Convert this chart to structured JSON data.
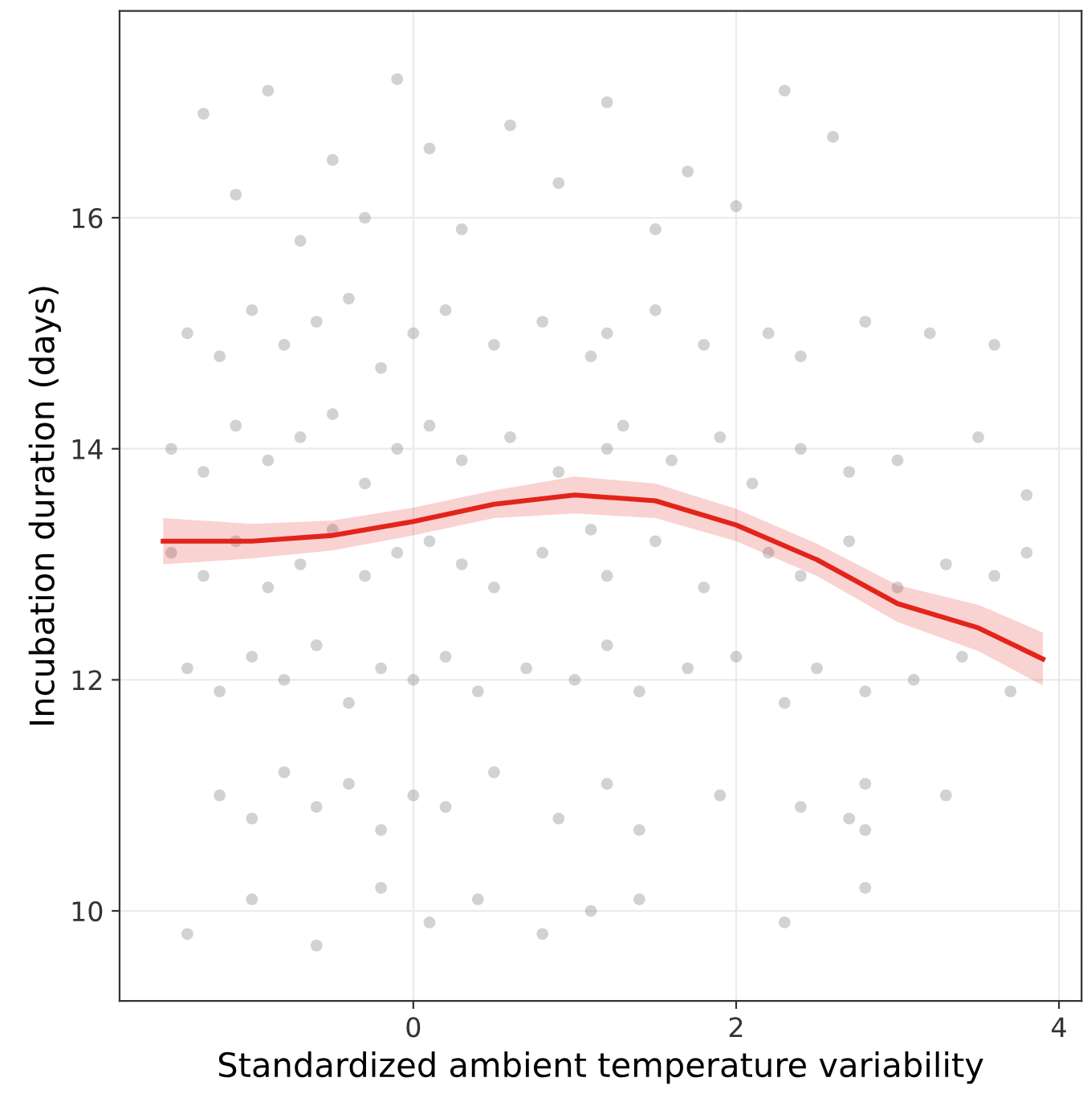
{
  "chart_data": {
    "type": "scatter",
    "xlabel": "Standardized ambient temperature variability",
    "ylabel": "Incubation duration (days)",
    "xlim": [
      -1.82,
      4.14
    ],
    "ylim": [
      9.22,
      17.79
    ],
    "xticks": [
      0,
      2,
      4
    ],
    "yticks": [
      10,
      12,
      14,
      16
    ],
    "grid": true,
    "marker": "circle",
    "series": [
      {
        "color": "#7f7f7f",
        "x": [
          -1.5,
          -1.3,
          -1.1,
          -0.9,
          -0.7,
          -0.5,
          -0.3,
          -0.1,
          0.1,
          0.3,
          0.5,
          0.8,
          1.1,
          1.2,
          1.5,
          1.8,
          2.2,
          2.4,
          2.7,
          3.0,
          3.3,
          3.6,
          3.8,
          -1.4,
          -1.2,
          -1.0,
          -0.8,
          -0.6,
          -0.4,
          -0.2,
          0.0,
          0.2,
          0.4,
          0.7,
          1.0,
          1.2,
          1.4,
          1.7,
          2.0,
          2.3,
          2.5,
          2.8,
          3.1,
          3.4,
          3.7,
          -1.5,
          -1.3,
          -1.1,
          -0.9,
          -0.7,
          -0.5,
          -0.3,
          -0.1,
          0.1,
          0.3,
          0.6,
          0.9,
          1.2,
          1.3,
          1.6,
          1.9,
          2.1,
          2.4,
          2.7,
          3.0,
          3.5,
          3.8,
          -1.4,
          -1.2,
          -1.0,
          -0.8,
          -0.6,
          -0.4,
          -0.2,
          0.0,
          0.2,
          0.5,
          0.8,
          1.1,
          1.2,
          1.5,
          1.8,
          2.2,
          2.4,
          2.8,
          3.2,
          3.6,
          -1.3,
          -1.1,
          -0.9,
          -0.7,
          -0.5,
          -0.3,
          -0.1,
          0.1,
          0.3,
          0.6,
          0.9,
          1.2,
          1.5,
          1.7,
          2.0,
          2.3,
          2.6,
          -1.2,
          -1.0,
          -0.8,
          -0.6,
          -0.4,
          -0.2,
          0.0,
          0.2,
          0.5,
          0.9,
          1.2,
          1.4,
          1.9,
          2.4,
          2.7,
          2.8,
          2.8,
          3.3,
          -1.4,
          -1.0,
          -0.6,
          -0.2,
          0.1,
          0.4,
          0.8,
          1.1,
          1.4,
          2.3,
          2.8
        ],
        "values": [
          13.1,
          12.9,
          13.2,
          12.8,
          13.0,
          13.3,
          12.9,
          13.1,
          13.2,
          13.0,
          12.8,
          13.1,
          13.3,
          12.9,
          13.2,
          12.8,
          13.1,
          12.9,
          13.2,
          12.8,
          13.0,
          12.9,
          13.1,
          12.1,
          11.9,
          12.2,
          12.0,
          12.3,
          11.8,
          12.1,
          12.0,
          12.2,
          11.9,
          12.1,
          12.0,
          12.3,
          11.9,
          12.1,
          12.2,
          11.8,
          12.1,
          11.9,
          12.0,
          12.2,
          11.9,
          14.0,
          13.8,
          14.2,
          13.9,
          14.1,
          14.3,
          13.7,
          14.0,
          14.2,
          13.9,
          14.1,
          13.8,
          14.0,
          14.2,
          13.9,
          14.1,
          13.7,
          14.0,
          13.8,
          13.9,
          14.1,
          13.6,
          15.0,
          14.8,
          15.2,
          14.9,
          15.1,
          15.3,
          14.7,
          15.0,
          15.2,
          14.9,
          15.1,
          14.8,
          15.0,
          15.2,
          14.9,
          15.0,
          14.8,
          15.1,
          15.0,
          14.9,
          16.9,
          16.2,
          17.1,
          15.8,
          16.5,
          16.0,
          17.2,
          16.6,
          15.9,
          16.8,
          16.3,
          17.0,
          15.9,
          16.4,
          16.1,
          17.1,
          16.7,
          11.0,
          10.8,
          11.2,
          10.9,
          11.1,
          10.7,
          11.0,
          10.9,
          11.2,
          10.8,
          11.1,
          10.7,
          11.0,
          10.9,
          10.8,
          11.1,
          10.7,
          11.0,
          9.8,
          10.1,
          9.7,
          10.2,
          9.9,
          10.1,
          9.8,
          10.0,
          10.1,
          9.9,
          10.2
        ]
      },
      {
        "type": "line",
        "marker": "none",
        "color": "#e3241b",
        "x": [
          -1.55,
          -1.0,
          -0.5,
          0.0,
          0.5,
          1.0,
          1.5,
          2.0,
          2.5,
          3.0,
          3.5,
          3.9
        ],
        "values": [
          13.2,
          13.2,
          13.25,
          13.37,
          13.52,
          13.6,
          13.55,
          13.34,
          13.04,
          12.66,
          12.45,
          12.18
        ],
        "lower": [
          13.0,
          13.05,
          13.12,
          13.25,
          13.4,
          13.44,
          13.4,
          13.2,
          12.9,
          12.5,
          12.25,
          11.95
        ],
        "upper": [
          13.4,
          13.35,
          13.38,
          13.49,
          13.64,
          13.76,
          13.7,
          13.48,
          13.18,
          12.82,
          12.65,
          12.41
        ]
      }
    ]
  }
}
